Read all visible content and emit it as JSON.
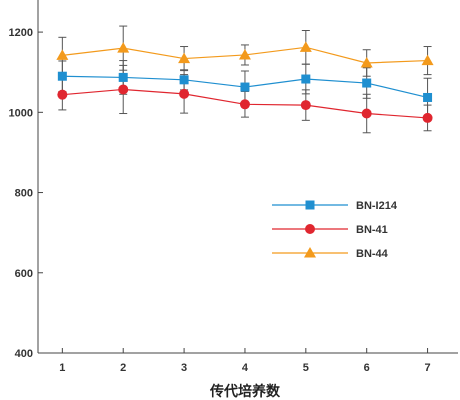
{
  "chart_data": {
    "type": "line",
    "title": "",
    "xlabel": "传代培养数",
    "ylabel": "",
    "x": [
      1,
      2,
      3,
      4,
      5,
      6,
      7
    ],
    "xlim": [
      0.6,
      7.5
    ],
    "ylim": [
      400,
      1280
    ],
    "yticks": [
      400,
      600,
      800,
      1000,
      1200
    ],
    "grid": false,
    "legend_position": "right",
    "series": [
      {
        "name": "BN-I214",
        "color": "#1f8fd0",
        "marker": "square",
        "values": [
          1090,
          1087,
          1081,
          1063,
          1083,
          1073,
          1037
        ],
        "errors": [
          38,
          42,
          25,
          40,
          37,
          38,
          48
        ]
      },
      {
        "name": "BN-41",
        "color": "#e0262f",
        "marker": "circle",
        "values": [
          1044,
          1057,
          1046,
          1020,
          1018,
          997,
          986
        ],
        "errors": [
          38,
          60,
          48,
          32,
          38,
          48,
          32
        ]
      },
      {
        "name": "BN-44",
        "color": "#f39a1c",
        "marker": "triangle",
        "values": [
          1142,
          1160,
          1134,
          1143,
          1162,
          1123,
          1129
        ],
        "errors": [
          45,
          55,
          30,
          25,
          42,
          33,
          35
        ]
      }
    ]
  }
}
